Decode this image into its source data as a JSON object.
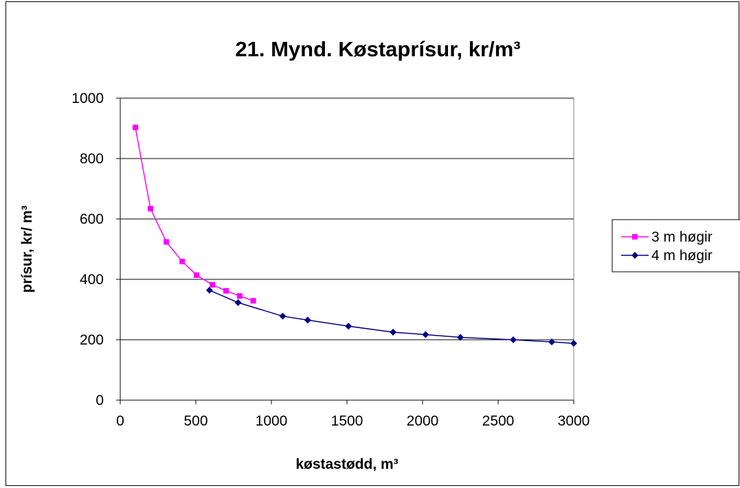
{
  "chart_data": {
    "type": "line",
    "title": "21. Mynd. Køstaprísur, kr/m³",
    "xlabel": "køstastødd, m³",
    "ylabel": "prísur, kr/ m³",
    "xlim": [
      0,
      3000
    ],
    "ylim": [
      0,
      1000
    ],
    "x_ticks": [
      "0",
      "500",
      "1000",
      "1500",
      "2000",
      "2500",
      "3000"
    ],
    "y_ticks": [
      "0",
      "200",
      "400",
      "600",
      "800",
      "1000"
    ],
    "grid": "horizontal",
    "legend_position": "right",
    "series": [
      {
        "name": "3 m høgir",
        "color": "#ff00ff",
        "marker": "square",
        "points": [
          [
            100,
            903
          ],
          [
            200,
            634
          ],
          [
            305,
            524
          ],
          [
            410,
            459
          ],
          [
            505,
            414
          ],
          [
            610,
            382
          ],
          [
            700,
            362
          ],
          [
            790,
            345
          ],
          [
            880,
            329
          ]
        ]
      },
      {
        "name": "4 m høgir",
        "color": "#000080",
        "marker": "diamond",
        "points": [
          [
            590,
            364
          ],
          [
            780,
            323
          ],
          [
            1075,
            278
          ],
          [
            1240,
            265
          ],
          [
            1510,
            245
          ],
          [
            1805,
            225
          ],
          [
            2020,
            217
          ],
          [
            2250,
            208
          ],
          [
            2600,
            200
          ],
          [
            2855,
            193
          ],
          [
            3000,
            188
          ]
        ]
      }
    ]
  }
}
